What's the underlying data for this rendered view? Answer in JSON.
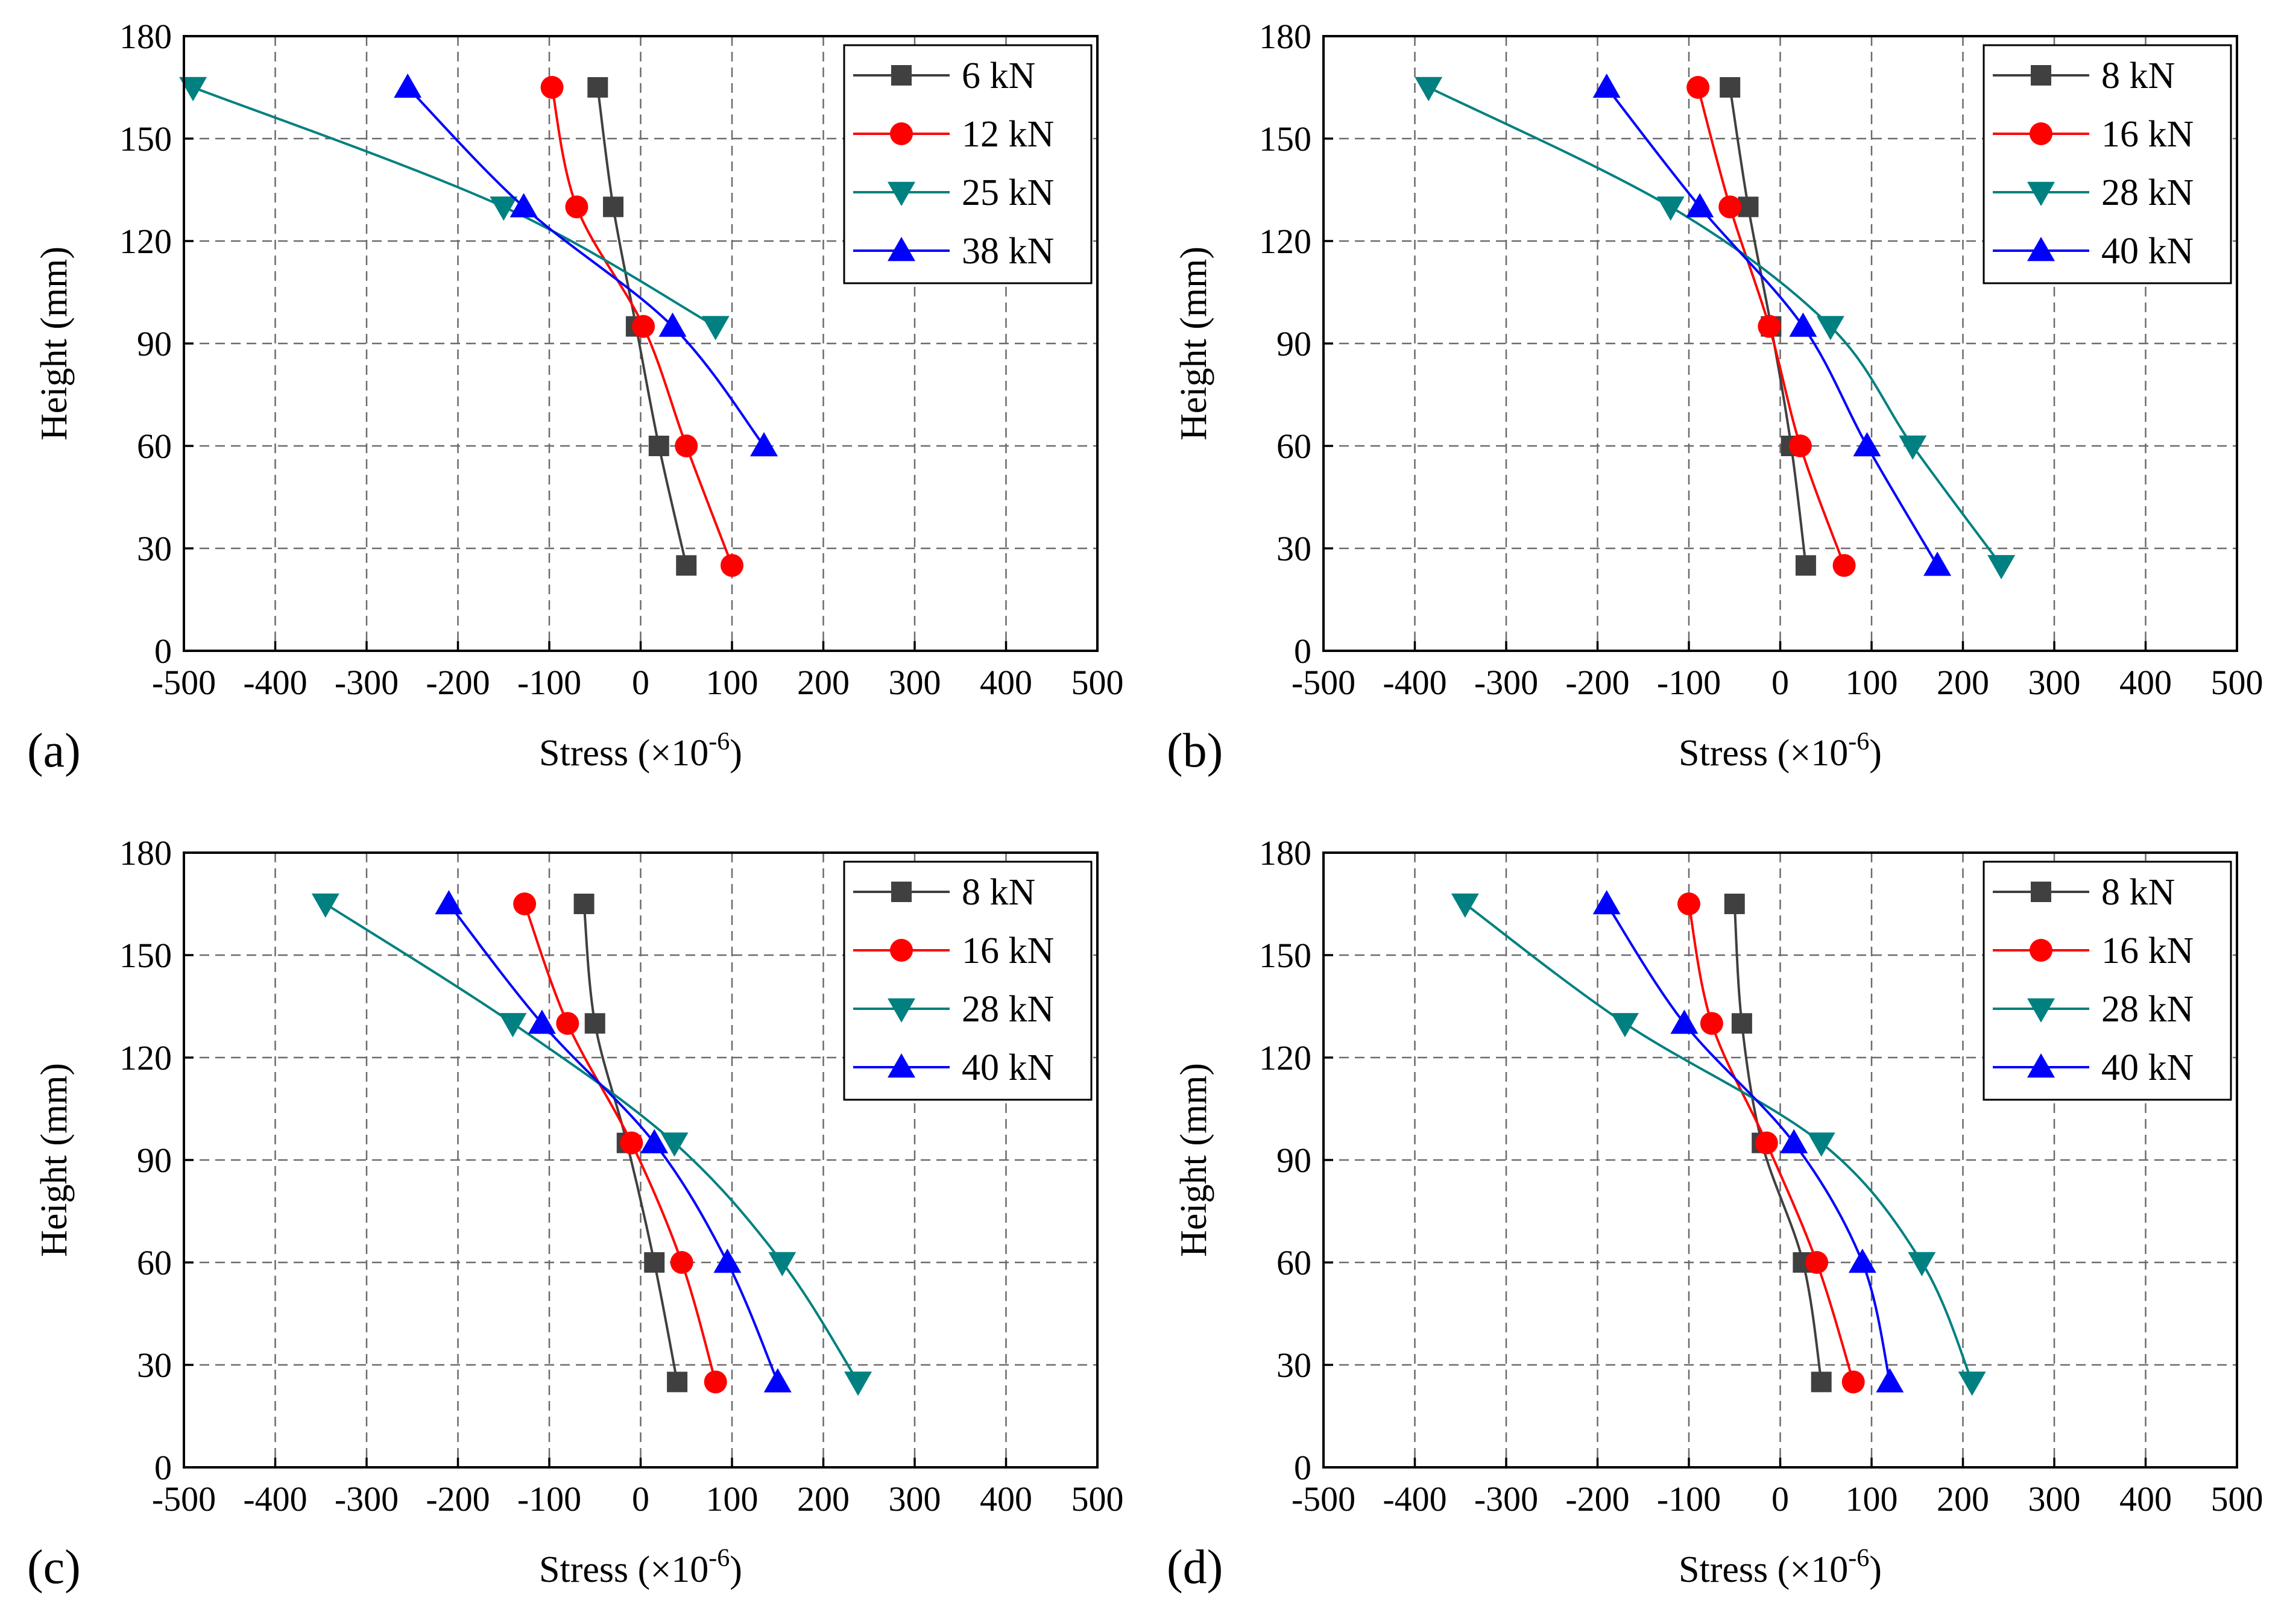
{
  "figure": {
    "panel_labels": [
      "(a)",
      "(b)",
      "(c)",
      "(d)"
    ]
  },
  "chart_data": [
    {
      "type": "line",
      "panel": "(a)",
      "title": "",
      "xlabel": "Stress (×10",
      "xlabel_exp": "-6",
      "xlabel_close": ")",
      "ylabel": "Height (mm)",
      "xlim": [
        -500,
        500
      ],
      "ylim": [
        0,
        180
      ],
      "xticks": [
        -500,
        -400,
        -300,
        -200,
        -100,
        0,
        100,
        200,
        300,
        400,
        500
      ],
      "yticks": [
        0,
        30,
        60,
        90,
        120,
        150,
        180
      ],
      "xtick_labels": [
        "-500",
        "-400",
        "-300",
        "-200",
        "-100",
        "0",
        "100",
        "200",
        "300",
        "400",
        "500"
      ],
      "ytick_labels": [
        "0",
        "30",
        "60",
        "90",
        "120",
        "150",
        "180"
      ],
      "grid": true,
      "legend_position": "top-right",
      "y": [
        165,
        130,
        95,
        60,
        25
      ],
      "series": [
        {
          "name": "6 kN",
          "color": "#404040",
          "marker": "square",
          "x": [
            -47,
            -30,
            -5,
            20,
            50
          ]
        },
        {
          "name": "12 kN",
          "color": "#ff0000",
          "marker": "circle",
          "x": [
            -97,
            -70,
            3,
            50,
            100
          ]
        },
        {
          "name": "25 kN",
          "color": "#008080",
          "marker": "triangle-down",
          "x": [
            -490,
            -150,
            82
          ]
        },
        {
          "name": "38 kN",
          "color": "#0000ff",
          "marker": "triangle-up",
          "x": [
            -255,
            -128,
            35,
            135
          ]
        }
      ]
    },
    {
      "type": "line",
      "panel": "(b)",
      "title": "",
      "xlabel": "Stress (×10",
      "xlabel_exp": "-6",
      "xlabel_close": ")",
      "ylabel": "Height (mm)",
      "xlim": [
        -500,
        500
      ],
      "ylim": [
        0,
        180
      ],
      "xticks": [
        -500,
        -400,
        -300,
        -200,
        -100,
        0,
        100,
        200,
        300,
        400,
        500
      ],
      "yticks": [
        0,
        30,
        60,
        90,
        120,
        150,
        180
      ],
      "xtick_labels": [
        "-500",
        "-400",
        "-300",
        "-200",
        "-100",
        "0",
        "100",
        "200",
        "300",
        "400",
        "500"
      ],
      "ytick_labels": [
        "0",
        "30",
        "60",
        "90",
        "120",
        "150",
        "180"
      ],
      "grid": true,
      "legend_position": "top-right",
      "y": [
        165,
        130,
        95,
        60,
        25
      ],
      "series": [
        {
          "name": "8 kN",
          "color": "#404040",
          "marker": "square",
          "x": [
            -55,
            -35,
            -10,
            12,
            28
          ]
        },
        {
          "name": "16 kN",
          "color": "#ff0000",
          "marker": "circle",
          "x": [
            -90,
            -55,
            -12,
            22,
            70
          ]
        },
        {
          "name": "28 kN",
          "color": "#008080",
          "marker": "triangle-down",
          "x": [
            -385,
            -120,
            55,
            145,
            242
          ]
        },
        {
          "name": "40 kN",
          "color": "#0000ff",
          "marker": "triangle-up",
          "x": [
            -190,
            -88,
            25,
            95,
            172
          ]
        }
      ]
    },
    {
      "type": "line",
      "panel": "(c)",
      "title": "",
      "xlabel": "Stress (×10",
      "xlabel_exp": "-6",
      "xlabel_close": ")",
      "ylabel": "Height (mm)",
      "xlim": [
        -500,
        500
      ],
      "ylim": [
        0,
        180
      ],
      "xticks": [
        -500,
        -400,
        -300,
        -200,
        -100,
        0,
        100,
        200,
        300,
        400,
        500
      ],
      "yticks": [
        0,
        30,
        60,
        90,
        120,
        150,
        180
      ],
      "xtick_labels": [
        "-500",
        "-400",
        "-300",
        "-200",
        "-100",
        "0",
        "100",
        "200",
        "300",
        "400",
        "500"
      ],
      "ytick_labels": [
        "0",
        "30",
        "60",
        "90",
        "120",
        "150",
        "180"
      ],
      "grid": true,
      "legend_position": "top-right",
      "y": [
        165,
        130,
        95,
        60,
        25
      ],
      "series": [
        {
          "name": "8 kN",
          "color": "#404040",
          "marker": "square",
          "x": [
            -62,
            -50,
            -15,
            15,
            40
          ]
        },
        {
          "name": "16 kN",
          "color": "#ff0000",
          "marker": "circle",
          "x": [
            -127,
            -80,
            -10,
            45,
            82
          ]
        },
        {
          "name": "28 kN",
          "color": "#008080",
          "marker": "triangle-down",
          "x": [
            -345,
            -140,
            37,
            155,
            238
          ]
        },
        {
          "name": "40 kN",
          "color": "#0000ff",
          "marker": "triangle-up",
          "x": [
            -210,
            -108,
            15,
            95,
            150
          ]
        }
      ]
    },
    {
      "type": "line",
      "panel": "(d)",
      "title": "",
      "xlabel": "Stress (×10",
      "xlabel_exp": "-6",
      "xlabel_close": ")",
      "ylabel": "Height (mm)",
      "xlim": [
        -500,
        500
      ],
      "ylim": [
        0,
        180
      ],
      "xticks": [
        -500,
        -400,
        -300,
        -200,
        -100,
        0,
        100,
        200,
        300,
        400,
        500
      ],
      "yticks": [
        0,
        30,
        60,
        90,
        120,
        150,
        180
      ],
      "xtick_labels": [
        "-500",
        "-400",
        "-300",
        "-200",
        "-100",
        "0",
        "100",
        "200",
        "300",
        "400",
        "500"
      ],
      "ytick_labels": [
        "0",
        "30",
        "60",
        "90",
        "120",
        "150",
        "180"
      ],
      "grid": true,
      "legend_position": "top-right",
      "y": [
        165,
        130,
        95,
        60,
        25
      ],
      "series": [
        {
          "name": "8 kN",
          "color": "#404040",
          "marker": "square",
          "x": [
            -50,
            -42,
            -20,
            25,
            45
          ]
        },
        {
          "name": "16 kN",
          "color": "#ff0000",
          "marker": "circle",
          "x": [
            -100,
            -75,
            -15,
            40,
            80
          ]
        },
        {
          "name": "28 kN",
          "color": "#008080",
          "marker": "triangle-down",
          "x": [
            -345,
            -170,
            45,
            155,
            210
          ]
        },
        {
          "name": "40 kN",
          "color": "#0000ff",
          "marker": "triangle-up",
          "x": [
            -190,
            -105,
            15,
            90,
            120
          ]
        }
      ]
    }
  ]
}
